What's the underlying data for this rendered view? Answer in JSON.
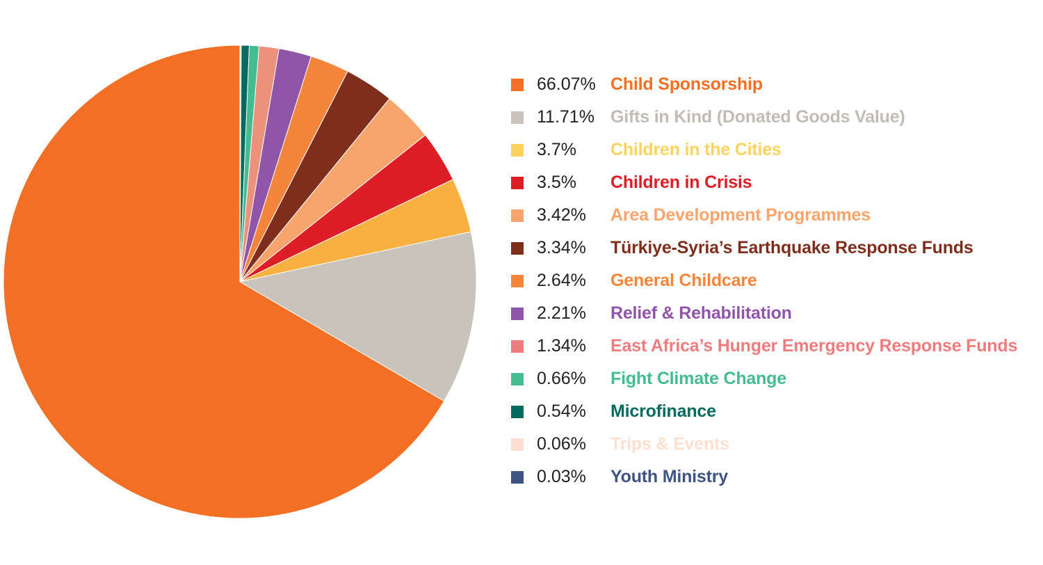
{
  "chart_data": {
    "type": "pie",
    "title": "",
    "start_angle": "top",
    "direction": "clockwise-from-12-o-clock-largest-last",
    "legend_position": "right",
    "slices": [
      {
        "label": "Youth Ministry",
        "percent_label": "0.03%",
        "value": 0.03,
        "color": "#3f5485"
      },
      {
        "label": "Trips & Events",
        "percent_label": "0.06%",
        "value": 0.06,
        "color": "#fde0cf"
      },
      {
        "label": "Microfinance",
        "percent_label": "0.54%",
        "value": 0.54,
        "color": "#046b5e"
      },
      {
        "label": "Fight Climate Change",
        "percent_label": "0.66%",
        "value": 0.66,
        "color": "#45bb92"
      },
      {
        "label": "East Africa’s Hunger Emergency Response Funds",
        "percent_label": "1.34%",
        "value": 1.34,
        "color": "#ec917a"
      },
      {
        "label": "Relief & Rehabilitation",
        "percent_label": "2.21%",
        "value": 2.21,
        "color": "#8f55a8"
      },
      {
        "label": "General Childcare",
        "percent_label": "2.64%",
        "value": 2.64,
        "color": "#f4853a"
      },
      {
        "label": "Türkiye-Syria’s Earthquake Response Funds",
        "percent_label": "3.34%",
        "value": 3.34,
        "color": "#7f2d1c"
      },
      {
        "label": "Area Development Programmes",
        "percent_label": "3.42%",
        "value": 3.42,
        "color": "#f7a56d"
      },
      {
        "label": "Children in Crisis",
        "percent_label": "3.5%",
        "value": 3.5,
        "color": "#dd1e26"
      },
      {
        "label": "Children in the Cities",
        "percent_label": "3.7%",
        "value": 3.7,
        "color": "#f8b040"
      },
      {
        "label": "Gifts in Kind (Donated Goods Value)",
        "percent_label": "11.71%",
        "value": 11.71,
        "color": "#c9c4bb"
      },
      {
        "label": "Child Sponsorship",
        "percent_label": "66.07%",
        "value": 66.07,
        "color": "#f26f24"
      }
    ]
  },
  "legend": [
    {
      "percent": "66.07%",
      "label": "Child Sponsorship",
      "swatch": "#f26f24",
      "text_color": "#f26f24"
    },
    {
      "percent": "11.71%",
      "label": "Gifts in Kind (Donated Goods Value)",
      "swatch": "#c9c4bb",
      "text_color": "#c2bdb4"
    },
    {
      "percent": "3.7%",
      "label": "Children in the Cities",
      "swatch": "#fdd35f",
      "text_color": "#fdd35f"
    },
    {
      "percent": "3.5%",
      "label": "Children in Crisis",
      "swatch": "#dd1e26",
      "text_color": "#dd1e26"
    },
    {
      "percent": "3.42%",
      "label": "Area Development Programmes",
      "swatch": "#f7a56d",
      "text_color": "#f7a56d"
    },
    {
      "percent": "3.34%",
      "label": "Türkiye-Syria’s Earthquake Response Funds",
      "swatch": "#7f2d1c",
      "text_color": "#7f2d1c"
    },
    {
      "percent": "2.64%",
      "label": "General Childcare",
      "swatch": "#f4853a",
      "text_color": "#f4853a"
    },
    {
      "percent": "2.21%",
      "label": "Relief & Rehabilitation",
      "swatch": "#8f55a8",
      "text_color": "#8f55a8"
    },
    {
      "percent": "1.34%",
      "label": "East Africa’s Hunger Emergency Response Funds",
      "swatch": "#ec7c7e",
      "text_color": "#ec7c7e"
    },
    {
      "percent": "0.66%",
      "label": "Fight Climate Change",
      "swatch": "#45bb92",
      "text_color": "#45bb92"
    },
    {
      "percent": "0.54%",
      "label": "Microfinance",
      "swatch": "#046b5e",
      "text_color": "#046b5e"
    },
    {
      "percent": "0.06%",
      "label": "Trips & Events",
      "swatch": "#fde0cf",
      "text_color": "#fde0cf"
    },
    {
      "percent": "0.03%",
      "label": "Youth Ministry",
      "swatch": "#3f5485",
      "text_color": "#3f5485"
    }
  ]
}
